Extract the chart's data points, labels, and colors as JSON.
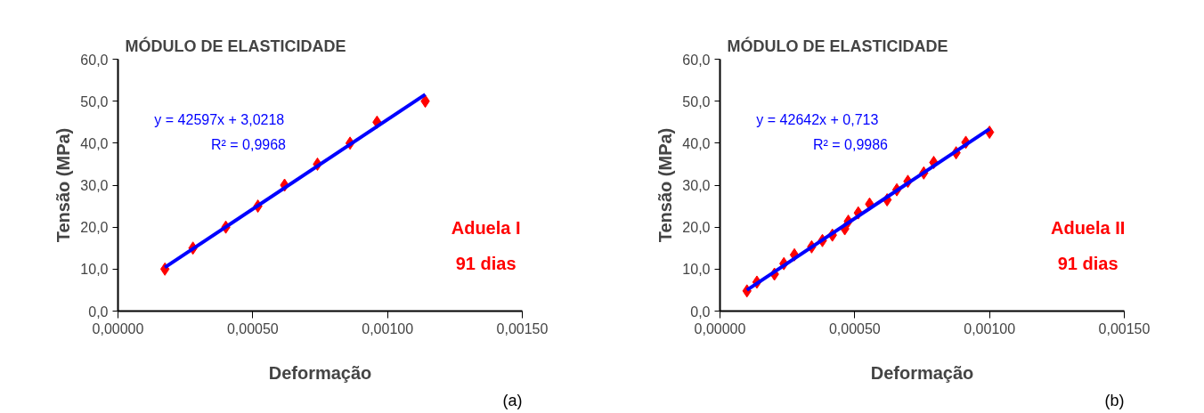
{
  "chart_data": [
    {
      "type": "scatter",
      "title": "MÓDULO DE ELASTICIDADE",
      "xlabel": "Deformação",
      "ylabel": "Tensão (MPa)",
      "marker": "diamond",
      "grid": false,
      "xlim": [
        0,
        0.0015
      ],
      "ylim": [
        0,
        60
      ],
      "xticks": [
        {
          "value": 0,
          "label": "0,00000"
        },
        {
          "value": 0.0005,
          "label": "0,00050"
        },
        {
          "value": 0.001,
          "label": "0,00100"
        },
        {
          "value": 0.0015,
          "label": "0,00150"
        }
      ],
      "yticks": [
        {
          "value": 0,
          "label": "0,0"
        },
        {
          "value": 10,
          "label": "10,0"
        },
        {
          "value": 20,
          "label": "20,0"
        },
        {
          "value": 30,
          "label": "30,0"
        },
        {
          "value": 40,
          "label": "40,0"
        },
        {
          "value": 50,
          "label": "50,0"
        },
        {
          "value": 60,
          "label": "60,0"
        }
      ],
      "series": [
        {
          "color": "#ff0000",
          "x": [
            0.000174,
            0.000278,
            0.0004,
            0.000519,
            0.000618,
            0.00074,
            0.000861,
            0.000961,
            0.00114
          ],
          "values": [
            10,
            15,
            20,
            25,
            30,
            35,
            40,
            45,
            50
          ]
        },
        {
          "type": "line",
          "marker": "none",
          "color": "#0000ff",
          "x": [
            0.000174,
            0.00114
          ],
          "values": [
            10.4,
            51.6
          ]
        }
      ],
      "annotations": [
        "y = 42597x + 3,0218",
        "R² = 0,9968",
        "Aduela I",
        "91 dias",
        "(a)"
      ]
    },
    {
      "type": "scatter",
      "title": "MÓDULO DE ELASTICIDADE",
      "xlabel": "Deformação",
      "ylabel": "Tensão (MPa)",
      "marker": "diamond",
      "grid": false,
      "xlim": [
        0,
        0.0015
      ],
      "ylim": [
        0,
        60
      ],
      "xticks": [
        {
          "value": 0,
          "label": "0,00000"
        },
        {
          "value": 0.0005,
          "label": "0,00050"
        },
        {
          "value": 0.001,
          "label": "0,00100"
        },
        {
          "value": 0.0015,
          "label": "0,00150"
        }
      ],
      "yticks": [
        {
          "value": 0,
          "label": "0,0"
        },
        {
          "value": 10,
          "label": "10,0"
        },
        {
          "value": 20,
          "label": "20,0"
        },
        {
          "value": 30,
          "label": "30,0"
        },
        {
          "value": 40,
          "label": "40,0"
        },
        {
          "value": 50,
          "label": "50,0"
        },
        {
          "value": 60,
          "label": "60,0"
        }
      ],
      "series": [
        {
          "color": "#ff0000",
          "x": [
            0.0001,
            0.000137,
            0.000202,
            0.000237,
            0.000276,
            0.00034,
            0.00038,
            0.000417,
            0.000463,
            0.000476,
            0.000513,
            0.000555,
            0.00062,
            0.000656,
            0.000697,
            0.000756,
            0.000793,
            0.000876,
            0.000912,
            0.001
          ],
          "values": [
            4.8,
            6.9,
            8.8,
            11.3,
            13.4,
            15.3,
            16.8,
            18.1,
            19.6,
            21.4,
            23.4,
            25.5,
            26.5,
            28.9,
            30.9,
            32.9,
            35.4,
            37.7,
            40.2,
            42.6
          ]
        },
        {
          "type": "line",
          "marker": "none",
          "color": "#0000ff",
          "x": [
            0.0001,
            0.001
          ],
          "values": [
            5.0,
            43.4
          ]
        }
      ],
      "annotations": [
        "y = 42642x + 0,713",
        "R² = 0,9986",
        "Aduela II",
        "91 dias",
        "(b)"
      ]
    }
  ]
}
